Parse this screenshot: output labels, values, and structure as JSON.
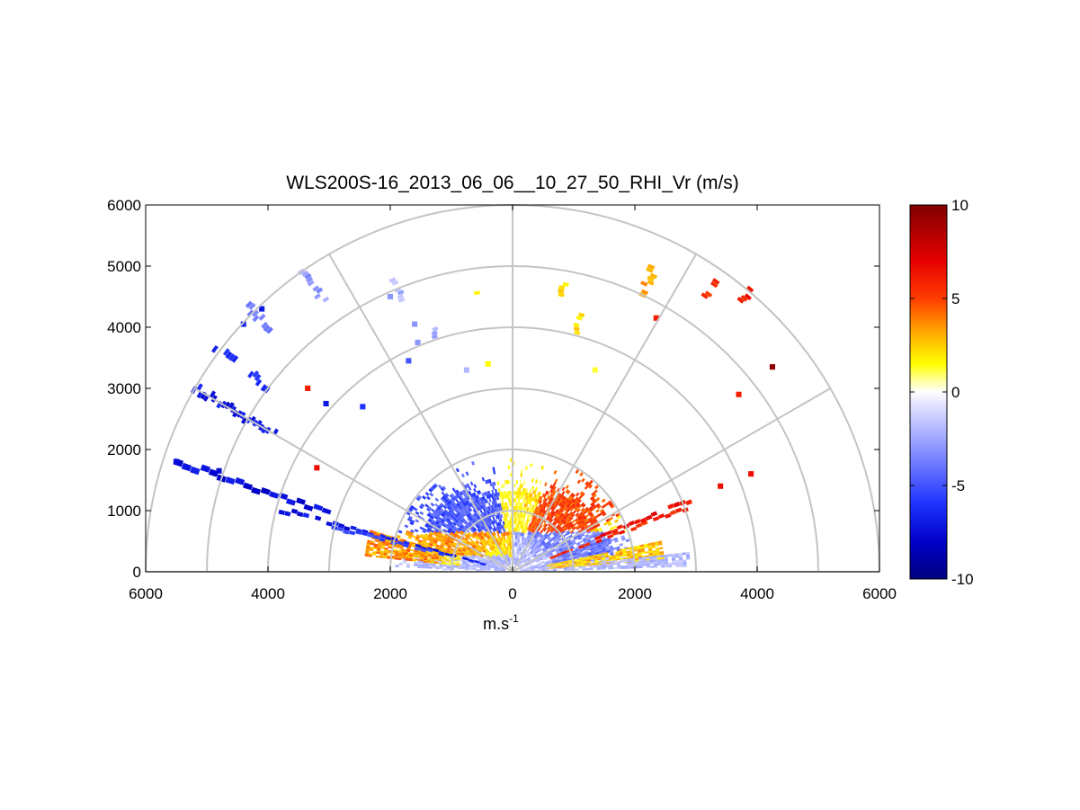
{
  "chart_data": {
    "type": "heatmap",
    "subtype": "polar-rhi",
    "title": "WLS200S-16_2013_06_06__10_27_50_RHI_Vr (m/s)",
    "xlabel": "m.s",
    "xlabel_superscript": "-1",
    "ylabel": "",
    "xlim": [
      -6000,
      6000
    ],
    "ylim": [
      0,
      6000
    ],
    "x_ticks": [
      {
        "value": -6000,
        "label": "6000"
      },
      {
        "value": -4000,
        "label": "4000"
      },
      {
        "value": -2000,
        "label": "2000"
      },
      {
        "value": 0,
        "label": "0"
      },
      {
        "value": 2000,
        "label": "2000"
      },
      {
        "value": 4000,
        "label": "4000"
      },
      {
        "value": 6000,
        "label": "6000"
      }
    ],
    "y_ticks": [
      {
        "value": 0,
        "label": "0"
      },
      {
        "value": 1000,
        "label": "1000"
      },
      {
        "value": 2000,
        "label": "2000"
      },
      {
        "value": 3000,
        "label": "3000"
      },
      {
        "value": 4000,
        "label": "4000"
      },
      {
        "value": 5000,
        "label": "5000"
      },
      {
        "value": 6000,
        "label": "6000"
      }
    ],
    "polar_grid": {
      "ring_radii": [
        1000,
        2000,
        3000,
        4000,
        5000,
        6000
      ],
      "spoke_angles_deg": [
        0,
        30,
        60,
        90,
        120,
        150,
        180
      ]
    },
    "colorbar": {
      "min": -10,
      "max": 10,
      "ticks": [
        {
          "value": 10,
          "label": "10"
        },
        {
          "value": 5,
          "label": "5"
        },
        {
          "value": 0,
          "label": "0"
        },
        {
          "value": -5,
          "label": "-5"
        },
        {
          "value": -10,
          "label": "-10"
        }
      ],
      "stops": [
        {
          "v": -10,
          "c": "#000080"
        },
        {
          "v": -8,
          "c": "#0000c8"
        },
        {
          "v": -6,
          "c": "#1e32ff"
        },
        {
          "v": -3,
          "c": "#8c96ff"
        },
        {
          "v": -0.6,
          "c": "#e6e6ff"
        },
        {
          "v": 0,
          "c": "#ffffff"
        },
        {
          "v": 0.6,
          "c": "#ffffa0"
        },
        {
          "v": 1.5,
          "c": "#ffff00"
        },
        {
          "v": 3,
          "c": "#ffb400"
        },
        {
          "v": 5,
          "c": "#ff3c00"
        },
        {
          "v": 7,
          "c": "#e60000"
        },
        {
          "v": 10,
          "c": "#800000"
        }
      ]
    },
    "beams": [
      {
        "elev": 162,
        "r0": 3200,
        "r1": 5900,
        "step": 150,
        "v": -7.5,
        "dr": 35
      },
      {
        "elev": 165,
        "r0": 500,
        "r1": 3900,
        "step": 100,
        "v": -7.0,
        "dr": 25
      },
      {
        "elev": 166,
        "r0": 1200,
        "r1": 3000,
        "step": 100,
        "v": -5.5,
        "dr": 25
      },
      {
        "elev": 20,
        "r0": 700,
        "r1": 3100,
        "step": 100,
        "v": 5.8,
        "dr": 25
      },
      {
        "elev": 22,
        "r0": 1500,
        "r1": 3100,
        "step": 100,
        "v": 6.5,
        "dr": 30
      },
      {
        "elev": 150,
        "r0": 4500,
        "r1": 6000,
        "step": 60,
        "v": -7.0,
        "dr": 45
      },
      {
        "elev": 143,
        "r0": 5000,
        "r1": 6100,
        "step": 60,
        "v": -6.0,
        "dr": 45
      },
      {
        "elev": 135,
        "r0": 5600,
        "r1": 6150,
        "step": 60,
        "v": -4.0,
        "dr": 40
      },
      {
        "elev": 125,
        "r0": 5400,
        "r1": 6000,
        "step": 60,
        "v": -3.0,
        "dr": 35
      },
      {
        "elev": 112,
        "r0": 4800,
        "r1": 5200,
        "step": 60,
        "v": -2.0,
        "dr": 40
      },
      {
        "elev": 97,
        "r0": 4600,
        "r1": 4700,
        "step": 60,
        "v": 1.0,
        "dr": 40
      },
      {
        "elev": 80,
        "r0": 4600,
        "r1": 4800,
        "step": 60,
        "v": 2.0,
        "dr": 40
      },
      {
        "elev": 65,
        "r0": 5000,
        "r1": 5500,
        "step": 60,
        "v": 3.0,
        "dr": 45
      },
      {
        "elev": 55,
        "r0": 5500,
        "r1": 5900,
        "step": 60,
        "v": 5.5,
        "dr": 45
      },
      {
        "elev": 50,
        "r0": 5800,
        "r1": 6050,
        "step": 60,
        "v": 6.0,
        "dr": 40
      },
      {
        "elev": 75,
        "r0": 4050,
        "r1": 4400,
        "step": 60,
        "v": 2.0,
        "dr": 40
      },
      {
        "elev": 108,
        "r0": 4050,
        "r1": 4250,
        "step": 60,
        "v": -2.5,
        "dr": 40
      }
    ],
    "spots": [
      {
        "x": -3350,
        "y": 3000,
        "v": 6
      },
      {
        "x": -3050,
        "y": 2750,
        "v": -7
      },
      {
        "x": -2450,
        "y": 2700,
        "v": -6
      },
      {
        "x": -3200,
        "y": 1700,
        "v": 6.5
      },
      {
        "x": -1700,
        "y": 3450,
        "v": -5
      },
      {
        "x": -1550,
        "y": 3750,
        "v": -3
      },
      {
        "x": -750,
        "y": 3300,
        "v": -2
      },
      {
        "x": 3700,
        "y": 2900,
        "v": 6
      },
      {
        "x": 4250,
        "y": 3350,
        "v": 9.5
      },
      {
        "x": 3400,
        "y": 1400,
        "v": 6.5
      },
      {
        "x": 3900,
        "y": 1600,
        "v": 6.5
      },
      {
        "x": 2350,
        "y": 4150,
        "v": 6
      },
      {
        "x": 1350,
        "y": 3300,
        "v": 1.2
      },
      {
        "x": -400,
        "y": 3400,
        "v": 1.5
      },
      {
        "x": -1600,
        "y": 4050,
        "v": -3
      },
      {
        "x": -2000,
        "y": 4500,
        "v": -3
      },
      {
        "x": -4100,
        "y": 4300,
        "v": -7
      },
      {
        "x": -4400,
        "y": 4050,
        "v": -6.5
      },
      {
        "x": -5500,
        "y": 1800,
        "v": -7.5
      },
      {
        "x": -4800,
        "y": 1650,
        "v": -7.5
      }
    ],
    "near_field": {
      "r_max": 2000,
      "stronger_up_to": 1600
    }
  }
}
